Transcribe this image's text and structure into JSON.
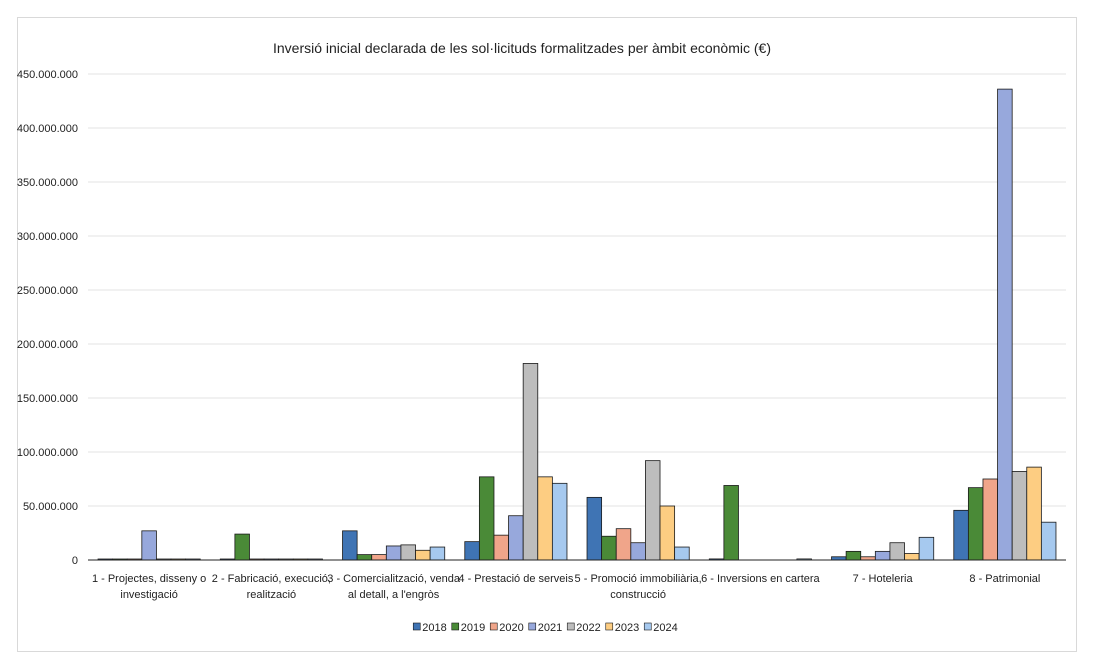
{
  "chart_data": {
    "type": "bar",
    "title": "Inversió inicial declarada de les sol·licituds formalitzades per àmbit econòmic (€)",
    "xlabel": "",
    "ylabel": "",
    "ylim": [
      0,
      450000000
    ],
    "yticks": [
      0,
      50000000,
      100000000,
      150000000,
      200000000,
      250000000,
      300000000,
      350000000,
      400000000,
      450000000
    ],
    "ytick_labels": [
      "0",
      "50.000.000",
      "100.000.000",
      "150.000.000",
      "200.000.000",
      "250.000.000",
      "300.000.000",
      "350.000.000",
      "400.000.000",
      "450.000.000"
    ],
    "grid": true,
    "legend_position": "bottom",
    "categories": [
      [
        "1 - Projectes, disseny o",
        "investigació"
      ],
      [
        "2 - Fabricació, execució,",
        "realització"
      ],
      [
        "3 - Comercialització, venda",
        "al detall, a l'engròs"
      ],
      [
        "4 - Prestació de serveis"
      ],
      [
        "5 - Promoció immobiliària,",
        "construcció"
      ],
      [
        "6 - Inversions en cartera"
      ],
      [
        "7 - Hoteleria"
      ],
      [
        "8 - Patrimonial"
      ]
    ],
    "series": [
      {
        "name": "2018",
        "color": "#3f74b4",
        "values": [
          500000,
          500000,
          27000000,
          17000000,
          58000000,
          1000000,
          3000000,
          46000000
        ]
      },
      {
        "name": "2019",
        "color": "#4a8a37",
        "values": [
          500000,
          24000000,
          5000000,
          77000000,
          22000000,
          69000000,
          8000000,
          67000000
        ]
      },
      {
        "name": "2020",
        "color": "#f0a58a",
        "values": [
          500000,
          500000,
          5000000,
          23000000,
          29000000,
          0,
          3000000,
          75000000
        ]
      },
      {
        "name": "2021",
        "color": "#97a8dc",
        "values": [
          27000000,
          500000,
          13000000,
          41000000,
          16000000,
          0,
          8000000,
          436000000
        ]
      },
      {
        "name": "2022",
        "color": "#bdbdbd",
        "values": [
          500000,
          500000,
          14000000,
          182000000,
          92000000,
          0,
          16000000,
          82000000
        ]
      },
      {
        "name": "2023",
        "color": "#fdcd82",
        "values": [
          500000,
          500000,
          9000000,
          77000000,
          50000000,
          0,
          6000000,
          86000000
        ]
      },
      {
        "name": "2024",
        "color": "#a6c9ef",
        "values": [
          500000,
          500000,
          12000000,
          71000000,
          12000000,
          1000000,
          21000000,
          35000000
        ]
      }
    ]
  }
}
